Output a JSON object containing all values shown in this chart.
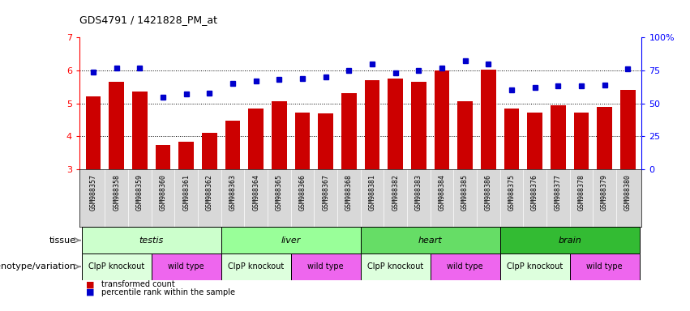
{
  "title": "GDS4791 / 1421828_PM_at",
  "samples": [
    "GSM988357",
    "GSM988358",
    "GSM988359",
    "GSM988360",
    "GSM988361",
    "GSM988362",
    "GSM988363",
    "GSM988364",
    "GSM988365",
    "GSM988366",
    "GSM988367",
    "GSM988368",
    "GSM988381",
    "GSM988382",
    "GSM988383",
    "GSM988384",
    "GSM988385",
    "GSM988386",
    "GSM988375",
    "GSM988376",
    "GSM988377",
    "GSM988378",
    "GSM988379",
    "GSM988380"
  ],
  "bar_values": [
    5.22,
    5.65,
    5.35,
    3.75,
    3.85,
    4.1,
    4.48,
    4.85,
    5.07,
    4.72,
    4.7,
    5.3,
    5.7,
    5.75,
    5.65,
    6.0,
    5.07,
    6.02,
    4.85,
    4.72,
    4.95,
    4.72,
    4.9,
    5.4
  ],
  "dot_values": [
    74,
    77,
    77,
    55,
    57,
    58,
    65,
    67,
    68,
    69,
    70,
    75,
    80,
    73,
    75,
    77,
    82,
    80,
    60,
    62,
    63,
    63,
    64,
    76
  ],
  "bar_color": "#cc0000",
  "dot_color": "#0000cc",
  "ylim_left": [
    3,
    7
  ],
  "ylim_right": [
    0,
    100
  ],
  "yticks_left": [
    3,
    4,
    5,
    6,
    7
  ],
  "yticks_right": [
    0,
    25,
    50,
    75,
    100
  ],
  "ytick_labels_right": [
    "0",
    "25",
    "50",
    "75",
    "100%"
  ],
  "hlines": [
    4.0,
    5.0,
    6.0
  ],
  "tissue_groups": [
    {
      "label": "testis",
      "start": 0,
      "end": 6,
      "color": "#ccffcc"
    },
    {
      "label": "liver",
      "start": 6,
      "end": 12,
      "color": "#99ff99"
    },
    {
      "label": "heart",
      "start": 12,
      "end": 18,
      "color": "#66dd66"
    },
    {
      "label": "brain",
      "start": 18,
      "end": 24,
      "color": "#33bb33"
    }
  ],
  "genotype_groups": [
    {
      "label": "ClpP knockout",
      "start": 0,
      "end": 3,
      "color": "#ddffdd"
    },
    {
      "label": "wild type",
      "start": 3,
      "end": 6,
      "color": "#ff88ff"
    },
    {
      "label": "ClpP knockout",
      "start": 6,
      "end": 9,
      "color": "#ddffdd"
    },
    {
      "label": "wild type",
      "start": 9,
      "end": 12,
      "color": "#ff88ff"
    },
    {
      "label": "ClpP knockout",
      "start": 12,
      "end": 15,
      "color": "#ddffdd"
    },
    {
      "label": "wild type",
      "start": 15,
      "end": 18,
      "color": "#ff88ff"
    },
    {
      "label": "ClpP knockout",
      "start": 18,
      "end": 21,
      "color": "#ddffdd"
    },
    {
      "label": "wild type",
      "start": 21,
      "end": 24,
      "color": "#ff88ff"
    }
  ],
  "tissue_label": "tissue",
  "genotype_label": "genotype/variation",
  "legend_items": [
    {
      "label": "transformed count",
      "color": "#cc0000"
    },
    {
      "label": "percentile rank within the sample",
      "color": "#0000cc"
    }
  ],
  "xtick_bg": "#d8d8d8",
  "plot_bg": "#ffffff"
}
